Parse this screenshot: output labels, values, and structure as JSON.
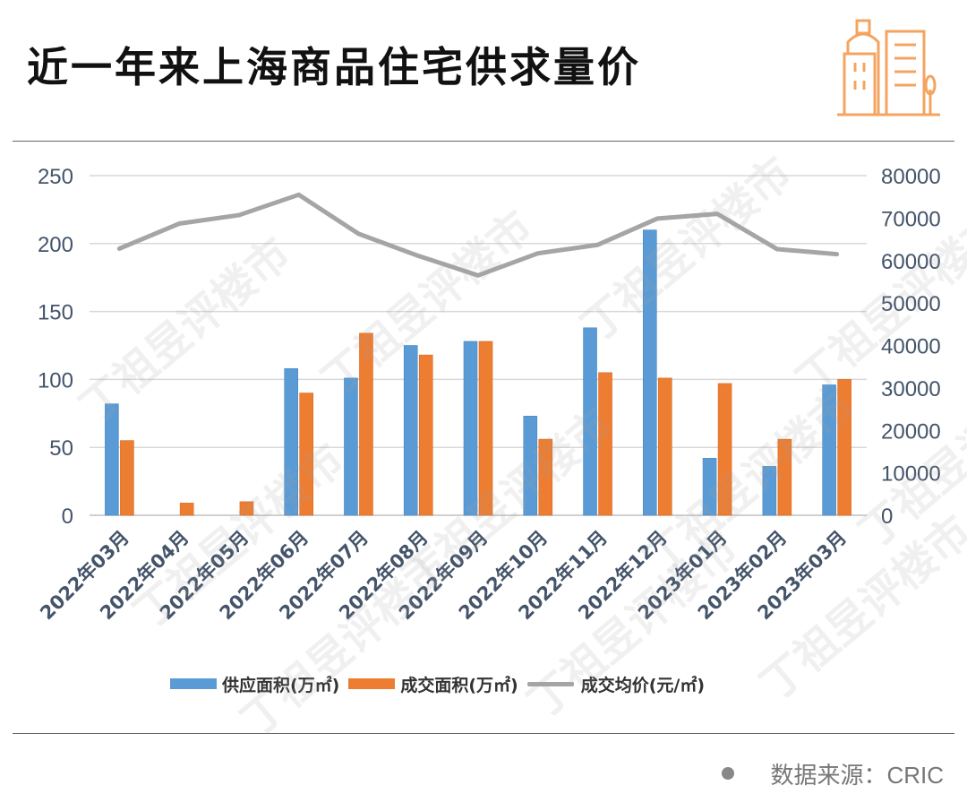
{
  "title": "近一年来上海商品住宅供求量价",
  "source": "数据来源：CRIC",
  "watermark": "丁祖昱评楼市",
  "colors": {
    "supply": "#5B9BD5",
    "deal": "#ED7D31",
    "price": "#A5A5A5",
    "axis_text": "#44546A",
    "logo": "#F4A460"
  },
  "icons": {
    "logo": "buildings-icon",
    "source_bullet": "dot-icon"
  },
  "chart_data": {
    "type": "bar",
    "categories": [
      "2022年03月",
      "2022年04月",
      "2022年05月",
      "2022年06月",
      "2022年07月",
      "2022年08月",
      "2022年09月",
      "2022年10月",
      "2022年11月",
      "2022年12月",
      "2023年01月",
      "2023年02月",
      "2023年03月"
    ],
    "series": [
      {
        "name": "供应面积(万㎡)",
        "type": "bar",
        "axis": "left",
        "values": [
          82,
          0,
          0,
          108,
          101,
          125,
          128,
          73,
          138,
          210,
          42,
          36,
          96
        ]
      },
      {
        "name": "成交面积(万㎡)",
        "type": "bar",
        "axis": "left",
        "values": [
          55,
          9,
          10,
          90,
          134,
          118,
          128,
          56,
          105,
          101,
          97,
          56,
          100
        ]
      },
      {
        "name": "成交均价(元/㎡)",
        "type": "line",
        "axis": "right",
        "values": [
          62800,
          68700,
          70700,
          75500,
          66300,
          61100,
          56500,
          61700,
          63700,
          69900,
          71000,
          62700,
          61500
        ]
      }
    ],
    "y_left": {
      "ylim": [
        0,
        250
      ],
      "ticks": [
        "0",
        "50",
        "100",
        "150",
        "200",
        "250"
      ]
    },
    "y_right": {
      "ylim": [
        0,
        80000
      ],
      "ticks": [
        "0",
        "10000",
        "20000",
        "30000",
        "40000",
        "50000",
        "60000",
        "70000",
        "80000"
      ]
    },
    "grid": true,
    "legend_position": "bottom"
  }
}
